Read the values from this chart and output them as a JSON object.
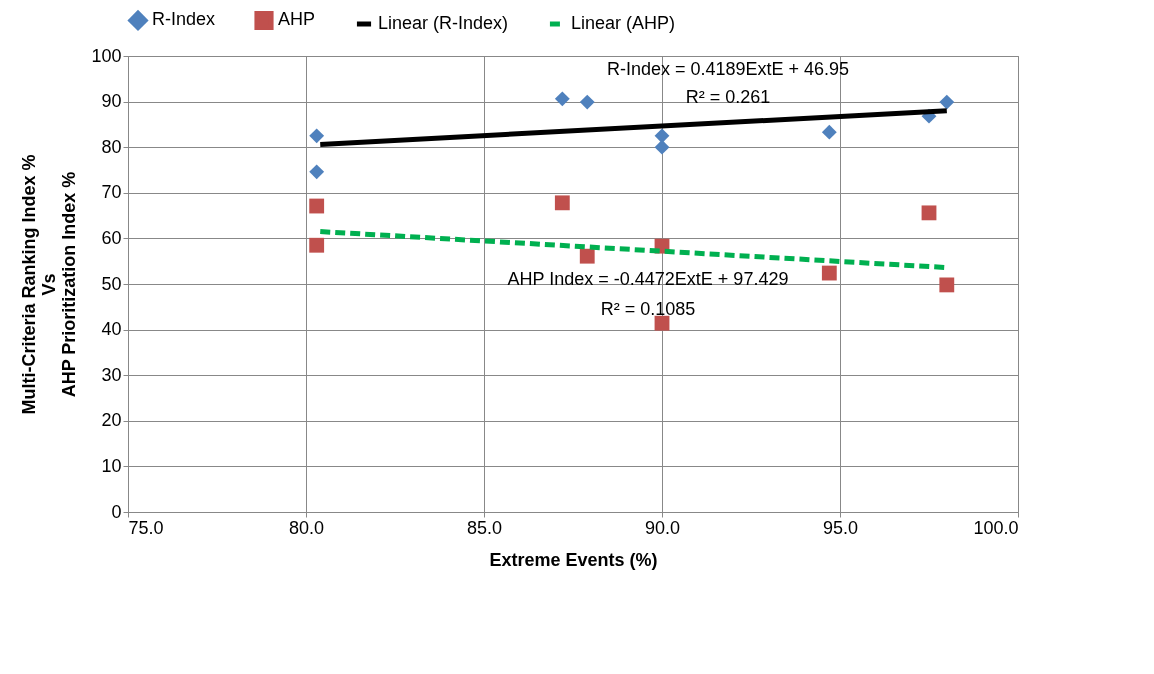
{
  "chart_data": {
    "type": "scatter",
    "xlabel": "Extreme Events (%)",
    "ylabel": "Multi-Criteria Ranking Index %\nVs\nAHP Prioritization Index %",
    "xlim": [
      75,
      100
    ],
    "ylim": [
      0,
      100
    ],
    "xticks": [
      {
        "value": 75,
        "label": "75.0"
      },
      {
        "value": 80,
        "label": "80.0"
      },
      {
        "value": 85,
        "label": "85.0"
      },
      {
        "value": 90,
        "label": "90.0"
      },
      {
        "value": 95,
        "label": "95.0"
      },
      {
        "value": 100,
        "label": "100.0"
      }
    ],
    "yticks": [
      0,
      10,
      20,
      30,
      40,
      50,
      60,
      70,
      80,
      90,
      100
    ],
    "grid": true,
    "legend": "top",
    "series": [
      {
        "name": "R-Index",
        "marker": "diamond",
        "color": "#4f81bd",
        "x": [
          80.3,
          80.3,
          87.2,
          87.9,
          90.0,
          90.0,
          94.7,
          97.5,
          98.0
        ],
        "values": [
          82.5,
          74.6,
          90.6,
          89.9,
          82.5,
          80.0,
          83.3,
          86.8,
          89.9
        ]
      },
      {
        "name": "AHP",
        "marker": "square",
        "color": "#c0504d",
        "x": [
          80.3,
          80.3,
          87.2,
          87.9,
          90.0,
          90.0,
          94.7,
          97.5,
          98.0
        ],
        "values": [
          67.1,
          58.5,
          67.8,
          56.1,
          58.3,
          41.4,
          52.4,
          65.6,
          49.8
        ]
      },
      {
        "name": "Linear (R-Index)",
        "type": "line",
        "line_style": "solid",
        "color": "#000000",
        "x": [
          80.4,
          98.0
        ],
        "values": [
          80.6,
          88.0
        ]
      },
      {
        "name": "Linear (AHP)",
        "type": "line",
        "line_style": "dashed",
        "color": "#00b050",
        "x": [
          80.4,
          98.0
        ],
        "values": [
          61.5,
          53.6
        ]
      }
    ],
    "annotations": [
      "R-Index = 0.4189ExtE + 46.95",
      "R² = 0.261",
      "AHP Index = -0.4472ExtE + 97.429",
      "R² = 0.1085"
    ]
  }
}
